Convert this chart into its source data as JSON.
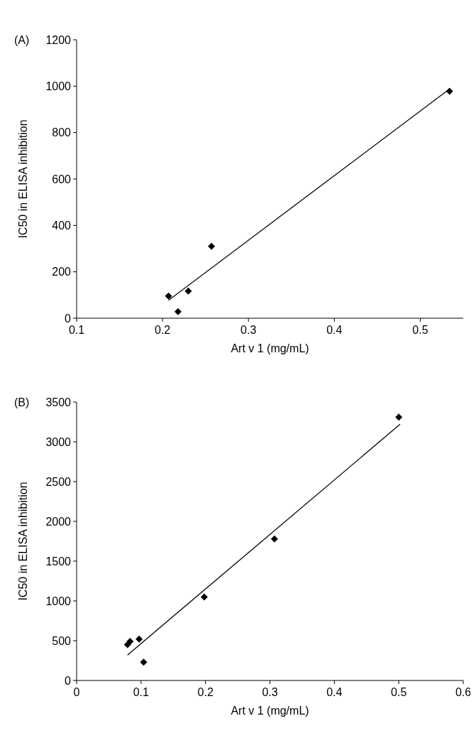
{
  "chart_data": [
    {
      "type": "scatter",
      "title": "(A)",
      "xlabel": "Art v 1 (mg/mL)",
      "ylabel": "IC50 in ELISA inhibition",
      "xlim": [
        0.1,
        0.55
      ],
      "xticks": [
        0.1,
        0.2,
        0.3,
        0.4,
        0.5
      ],
      "ylim": [
        0,
        1200
      ],
      "yticks": [
        0,
        200,
        400,
        600,
        800,
        1000,
        1200
      ],
      "grid": false,
      "series": [
        {
          "color": "#000000",
          "marker": "diamond",
          "x": [
            0.207,
            0.218,
            0.23,
            0.257,
            0.534
          ],
          "values": [
            96,
            28,
            117,
            310,
            978
          ]
        },
        {
          "type": "line",
          "color": "#000000",
          "x": [
            0.207,
            0.533
          ],
          "values": [
            77,
            985
          ]
        }
      ]
    },
    {
      "type": "scatter",
      "title": "(B)",
      "xlabel": "Art v 1 (mg/mL)",
      "ylabel": "IC50 in ELISA inhibition",
      "xlim": [
        0,
        0.6
      ],
      "xticks": [
        0,
        0.1,
        0.2,
        0.3,
        0.4,
        0.5,
        0.6
      ],
      "ylim": [
        0,
        3500
      ],
      "yticks": [
        0,
        500,
        1000,
        1500,
        2000,
        2500,
        3000,
        3500
      ],
      "grid": false,
      "series": [
        {
          "color": "#000000",
          "marker": "diamond",
          "x": [
            0.079,
            0.083,
            0.097,
            0.104,
            0.198,
            0.307,
            0.5
          ],
          "values": [
            450,
            490,
            520,
            230,
            1050,
            1780,
            3310
          ]
        },
        {
          "type": "line",
          "color": "#000000",
          "x": [
            0.079,
            0.502
          ],
          "values": [
            320,
            3220
          ]
        }
      ]
    }
  ]
}
